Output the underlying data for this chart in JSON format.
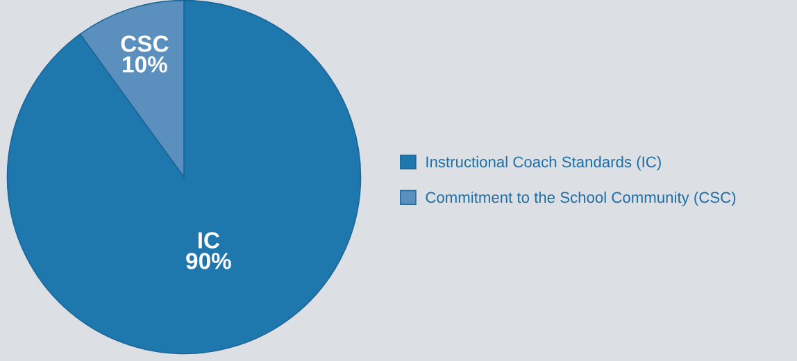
{
  "chart_data": {
    "type": "pie",
    "categories": [
      "Instructional Coach Standards (IC)",
      "Commitment to the School Community (CSC)"
    ],
    "values": [
      90,
      10
    ],
    "colors": [
      "#1f78ad",
      "#5b8fbd"
    ],
    "value_labels": [
      "IC\n90%",
      "CSC\n10%"
    ],
    "legend": "right"
  }
}
